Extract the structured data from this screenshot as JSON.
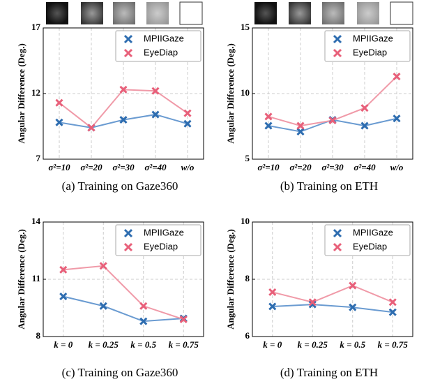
{
  "chart_data": [
    {
      "type": "line",
      "title": "(a)  Training on Gaze360",
      "y_label": "Angular Difference (Deg.)",
      "categories": [
        "σ²=10",
        "σ²=20",
        "σ²=30",
        "σ²=40",
        "w/o"
      ],
      "series": [
        {
          "name": "MPIIGaze",
          "color": "#2e6db0",
          "line_color": "#6a9bd1",
          "values": [
            9.8,
            9.4,
            10.0,
            10.4,
            9.7
          ]
        },
        {
          "name": "EyeDiap",
          "color": "#e8607a",
          "line_color": "#f09aa8",
          "values": [
            11.3,
            9.4,
            12.3,
            12.2,
            10.5
          ]
        }
      ],
      "ylim": [
        7,
        17
      ],
      "yticks": [
        7,
        12,
        17
      ],
      "grid": true,
      "legend": "upper right"
    },
    {
      "type": "line",
      "title": "(b)  Training on ETH",
      "y_label": "Angular Difference (Deg.)",
      "categories": [
        "σ²=10",
        "σ²=20",
        "σ²=30",
        "σ²=40",
        "w/o"
      ],
      "series": [
        {
          "name": "MPIIGaze",
          "color": "#2e6db0",
          "line_color": "#6a9bd1",
          "values": [
            7.55,
            7.1,
            8.0,
            7.55,
            8.1
          ]
        },
        {
          "name": "EyeDiap",
          "color": "#e8607a",
          "line_color": "#f09aa8",
          "values": [
            8.25,
            7.55,
            7.95,
            8.9,
            11.3
          ]
        }
      ],
      "ylim": [
        5,
        15
      ],
      "yticks": [
        5,
        10,
        15
      ],
      "grid": true,
      "legend": "upper right"
    },
    {
      "type": "line",
      "title": "(c)  Training on Gaze360",
      "y_label": "Angular Difference (Deg.)",
      "categories": [
        "k = 0",
        "k = 0.25",
        "k = 0.5",
        "k = 0.75"
      ],
      "series": [
        {
          "name": "MPIIGaze",
          "color": "#2e6db0",
          "line_color": "#6a9bd1",
          "values": [
            10.1,
            9.6,
            8.8,
            8.95
          ]
        },
        {
          "name": "EyeDiap",
          "color": "#e8607a",
          "line_color": "#f09aa8",
          "values": [
            11.5,
            11.7,
            9.6,
            8.9
          ]
        }
      ],
      "ylim": [
        8,
        14
      ],
      "yticks": [
        8,
        11,
        14
      ],
      "grid": true,
      "legend": "upper right"
    },
    {
      "type": "line",
      "title": "(d)  Training on ETH",
      "y_label": "Angular Difference (Deg.)",
      "categories": [
        "k = 0",
        "k = 0.25",
        "k = 0.5",
        "k = 0.75"
      ],
      "series": [
        {
          "name": "MPIIGaze",
          "color": "#2e6db0",
          "line_color": "#6a9bd1",
          "values": [
            7.05,
            7.12,
            7.02,
            6.85
          ]
        },
        {
          "name": "EyeDiap",
          "color": "#e8607a",
          "line_color": "#f09aa8",
          "values": [
            7.55,
            7.2,
            7.78,
            7.2
          ]
        }
      ],
      "ylim": [
        6,
        10
      ],
      "yticks": [
        6,
        8,
        10
      ],
      "grid": true,
      "legend": "upper right"
    }
  ]
}
